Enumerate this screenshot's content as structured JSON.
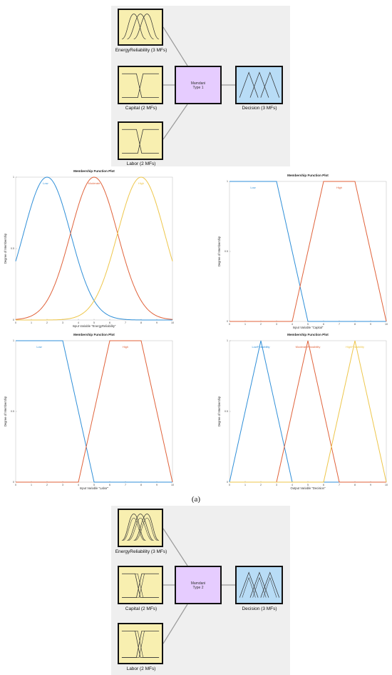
{
  "colors": {
    "blue": "#2f8fd8",
    "orange": "#e0623a",
    "yellow": "#eec64a",
    "input_box": "#f8efb0",
    "system_box": "#e6ccff",
    "output_box": "#b8dcf6",
    "panel": "#efefef"
  },
  "fis_top": {
    "inputs": [
      {
        "label": "EnergyReliability (3 MFs)",
        "icon": "gaussian-mf-icon"
      },
      {
        "label": "Capital (2 MFs)",
        "icon": "trapezoid-mf-icon"
      },
      {
        "label": "Labor (2 MFs)",
        "icon": "trapezoid-mf-icon"
      }
    ],
    "system": {
      "line1": "Mamdani",
      "line2": "Type 1"
    },
    "output": {
      "label": "Decision (3 MFs)",
      "icon": "triangle-mf-icon"
    }
  },
  "fis_bottom": {
    "inputs": [
      {
        "label": "EnergyReliability (3 MFs)",
        "icon": "gaussian-mf-icon"
      },
      {
        "label": "Capital (2 MFs)",
        "icon": "trapezoid-mf-icon"
      },
      {
        "label": "Labor (2 MFs)",
        "icon": "trapezoid-mf-icon"
      }
    ],
    "system": {
      "line1": "Mamdani",
      "line2": "Type 2"
    },
    "output": {
      "label": "Decision (3 MFs)",
      "icon": "triangle-mf-icon"
    }
  },
  "caption": "(a)",
  "chart_data": [
    {
      "type": "line",
      "kind": "gaussian",
      "title": "Membership Function Plot",
      "xlabel": "Input Variable \"EnergyReliability\"",
      "ylabel": "Degree of Membership",
      "xlim": [
        0,
        10
      ],
      "ylim": [
        0,
        1
      ],
      "xticks": [
        0,
        1,
        2,
        3,
        4,
        5,
        6,
        7,
        8,
        9,
        10
      ],
      "yticks": [
        {
          "v": 0,
          "label": "0"
        },
        {
          "v": 0.5,
          "label": "0.5"
        },
        {
          "v": 1,
          "label": "1"
        }
      ],
      "series": [
        {
          "name": "Low",
          "params": [
            1.5,
            2
          ],
          "color": "#2f8fd8",
          "label_x": 1.9
        },
        {
          "name": "Moderate",
          "params": [
            1.5,
            5
          ],
          "color": "#e0623a",
          "label_x": 5.0
        },
        {
          "name": "High",
          "params": [
            1.5,
            8
          ],
          "color": "#eec64a",
          "label_x": 8.0
        }
      ]
    },
    {
      "type": "line",
      "kind": "trapezoid",
      "title": "Membership Function Plot",
      "xlabel": "Input Variable \"Capital\"",
      "ylabel": "Degree of Membership",
      "xlim": [
        0,
        10
      ],
      "ylim": [
        0,
        1
      ],
      "xticks": [
        0,
        1,
        2,
        3,
        4,
        5,
        6,
        7,
        8,
        9,
        10
      ],
      "yticks": [
        {
          "v": 0,
          "label": "0"
        },
        {
          "v": 0.5,
          "label": "0.5"
        },
        {
          "v": 1,
          "label": "1"
        }
      ],
      "series": [
        {
          "name": "Low",
          "points": [
            [
              0,
              1
            ],
            [
              3,
              1
            ],
            [
              5,
              0
            ],
            [
              10,
              0
            ]
          ],
          "color": "#2f8fd8",
          "label_x": 1.5
        },
        {
          "name": "High",
          "points": [
            [
              0,
              0
            ],
            [
              4,
              0
            ],
            [
              6,
              1
            ],
            [
              8,
              1
            ],
            [
              10,
              0
            ]
          ],
          "color": "#e0623a",
          "label_x": 7.0
        }
      ]
    },
    {
      "type": "line",
      "kind": "trapezoid",
      "title": "Membership Function Plot",
      "xlabel": "Input Variable \"Labor\"",
      "ylabel": "Degree of Membership",
      "xlim": [
        0,
        10
      ],
      "ylim": [
        0,
        1
      ],
      "xticks": [
        0,
        1,
        2,
        3,
        4,
        5,
        6,
        7,
        8,
        9,
        10
      ],
      "yticks": [
        {
          "v": 0,
          "label": "0"
        },
        {
          "v": 0.5,
          "label": "0.5"
        },
        {
          "v": 1,
          "label": "1"
        }
      ],
      "series": [
        {
          "name": "Low",
          "points": [
            [
              0,
              1
            ],
            [
              3,
              1
            ],
            [
              5,
              0
            ],
            [
              10,
              0
            ]
          ],
          "color": "#2f8fd8",
          "label_x": 1.5
        },
        {
          "name": "High",
          "points": [
            [
              0,
              0
            ],
            [
              4,
              0
            ],
            [
              6,
              1
            ],
            [
              8,
              1
            ],
            [
              10,
              0
            ]
          ],
          "color": "#e0623a",
          "label_x": 7.0
        }
      ]
    },
    {
      "type": "line",
      "kind": "triangle",
      "title": "Membership Function Plot",
      "xlabel": "Output Variable \"Decision\"",
      "ylabel": "Degree of Membership",
      "xlim": [
        0,
        10
      ],
      "ylim": [
        0,
        1
      ],
      "xticks": [
        0,
        1,
        2,
        3,
        4,
        5,
        6,
        7,
        8,
        9,
        10
      ],
      "yticks": [
        {
          "v": 0,
          "label": "0"
        },
        {
          "v": 0.5,
          "label": "0.5"
        },
        {
          "v": 1,
          "label": "1"
        }
      ],
      "series": [
        {
          "name": "LowFeasibility",
          "points": [
            [
              0,
              0
            ],
            [
              2,
              1
            ],
            [
              4,
              0
            ],
            [
              10,
              0
            ]
          ],
          "color": "#2f8fd8",
          "label_x": 2.0
        },
        {
          "name": "ModerateFeasibility",
          "points": [
            [
              0,
              0
            ],
            [
              3,
              0
            ],
            [
              5,
              1
            ],
            [
              7,
              0
            ],
            [
              10,
              0
            ]
          ],
          "color": "#e0623a",
          "label_x": 5.0
        },
        {
          "name": "HighFeasibility",
          "points": [
            [
              0,
              0
            ],
            [
              6,
              0
            ],
            [
              8,
              1
            ],
            [
              10,
              0
            ]
          ],
          "color": "#eec64a",
          "label_x": 8.0
        }
      ]
    }
  ]
}
